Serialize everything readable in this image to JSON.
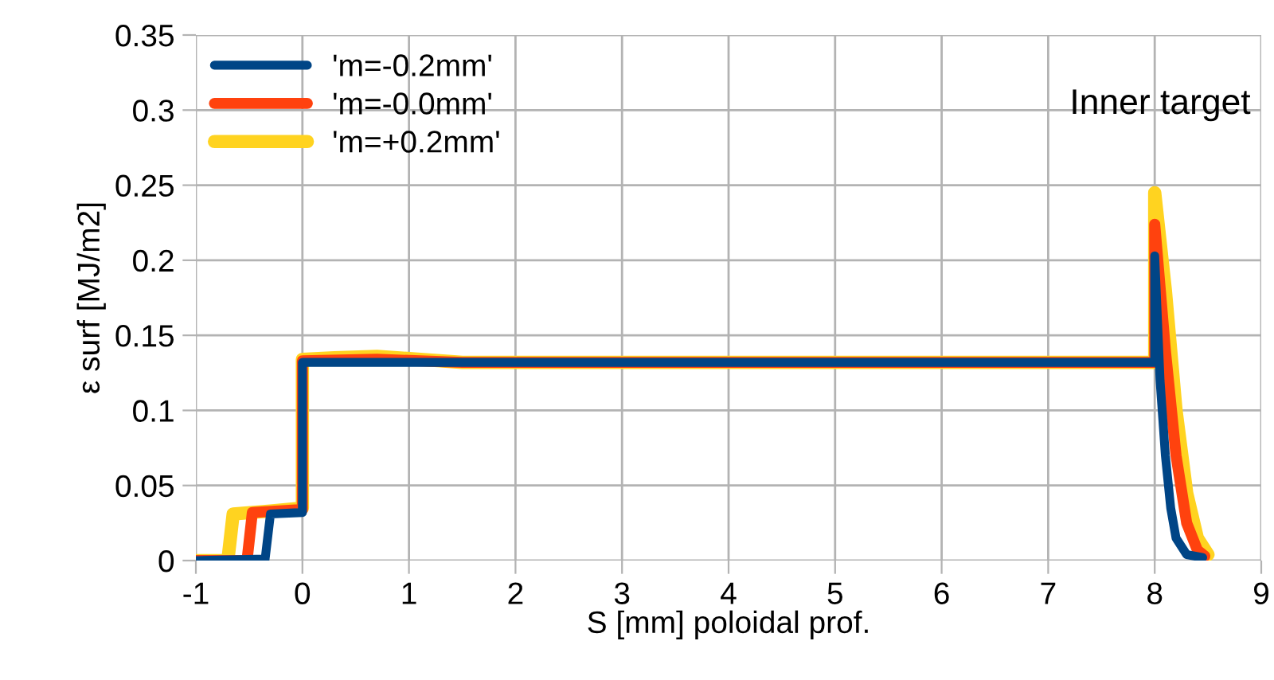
{
  "chart_data": {
    "type": "line",
    "xlabel": "S [mm] poloidal prof.",
    "ylabel": "ε surf [MJ/m2]",
    "annotations": [
      "Inner target"
    ],
    "xlim": [
      -1,
      9
    ],
    "xticks": [
      -1,
      0,
      1,
      2,
      3,
      4,
      5,
      6,
      7,
      8,
      9
    ],
    "ylim": [
      0,
      0.35
    ],
    "yticks": [
      0,
      0.05,
      0.1,
      0.15,
      0.2,
      0.25,
      0.3,
      0.35
    ],
    "grid": true,
    "legend": "top left",
    "series": [
      {
        "name": "'m=+0.2mm'",
        "color": "#ffd320",
        "x": [
          -1,
          -0.7,
          -0.65,
          -0.3,
          0,
          0,
          0.3,
          0.7,
          1.5,
          8,
          8,
          8.1,
          8.2,
          8.3,
          8.4,
          8.5
        ],
        "values": [
          0,
          0,
          0.031,
          0.033,
          0.035,
          0.134,
          0.135,
          0.136,
          0.132,
          0.132,
          0.245,
          0.18,
          0.1,
          0.045,
          0.015,
          0.004
        ]
      },
      {
        "name": "'m=-0.0mm'",
        "color": "#ff420e",
        "x": [
          -1,
          -0.52,
          -0.47,
          0,
          0,
          0.7,
          1.5,
          8,
          8,
          8.1,
          8.2,
          8.3,
          8.4,
          8.47
        ],
        "values": [
          0,
          0,
          0.032,
          0.034,
          0.133,
          0.134,
          0.132,
          0.132,
          0.224,
          0.14,
          0.07,
          0.025,
          0.007,
          0.003
        ]
      },
      {
        "name": "'m=-0.2mm'",
        "color": "#004586",
        "x": [
          -1,
          -0.35,
          -0.3,
          0,
          0,
          8,
          8,
          8.05,
          8.1,
          8.15,
          8.2,
          8.3,
          8.45
        ],
        "values": [
          0,
          0.001,
          0.031,
          0.032,
          0.132,
          0.132,
          0.203,
          0.12,
          0.07,
          0.035,
          0.015,
          0.004,
          0.002
        ]
      }
    ]
  }
}
